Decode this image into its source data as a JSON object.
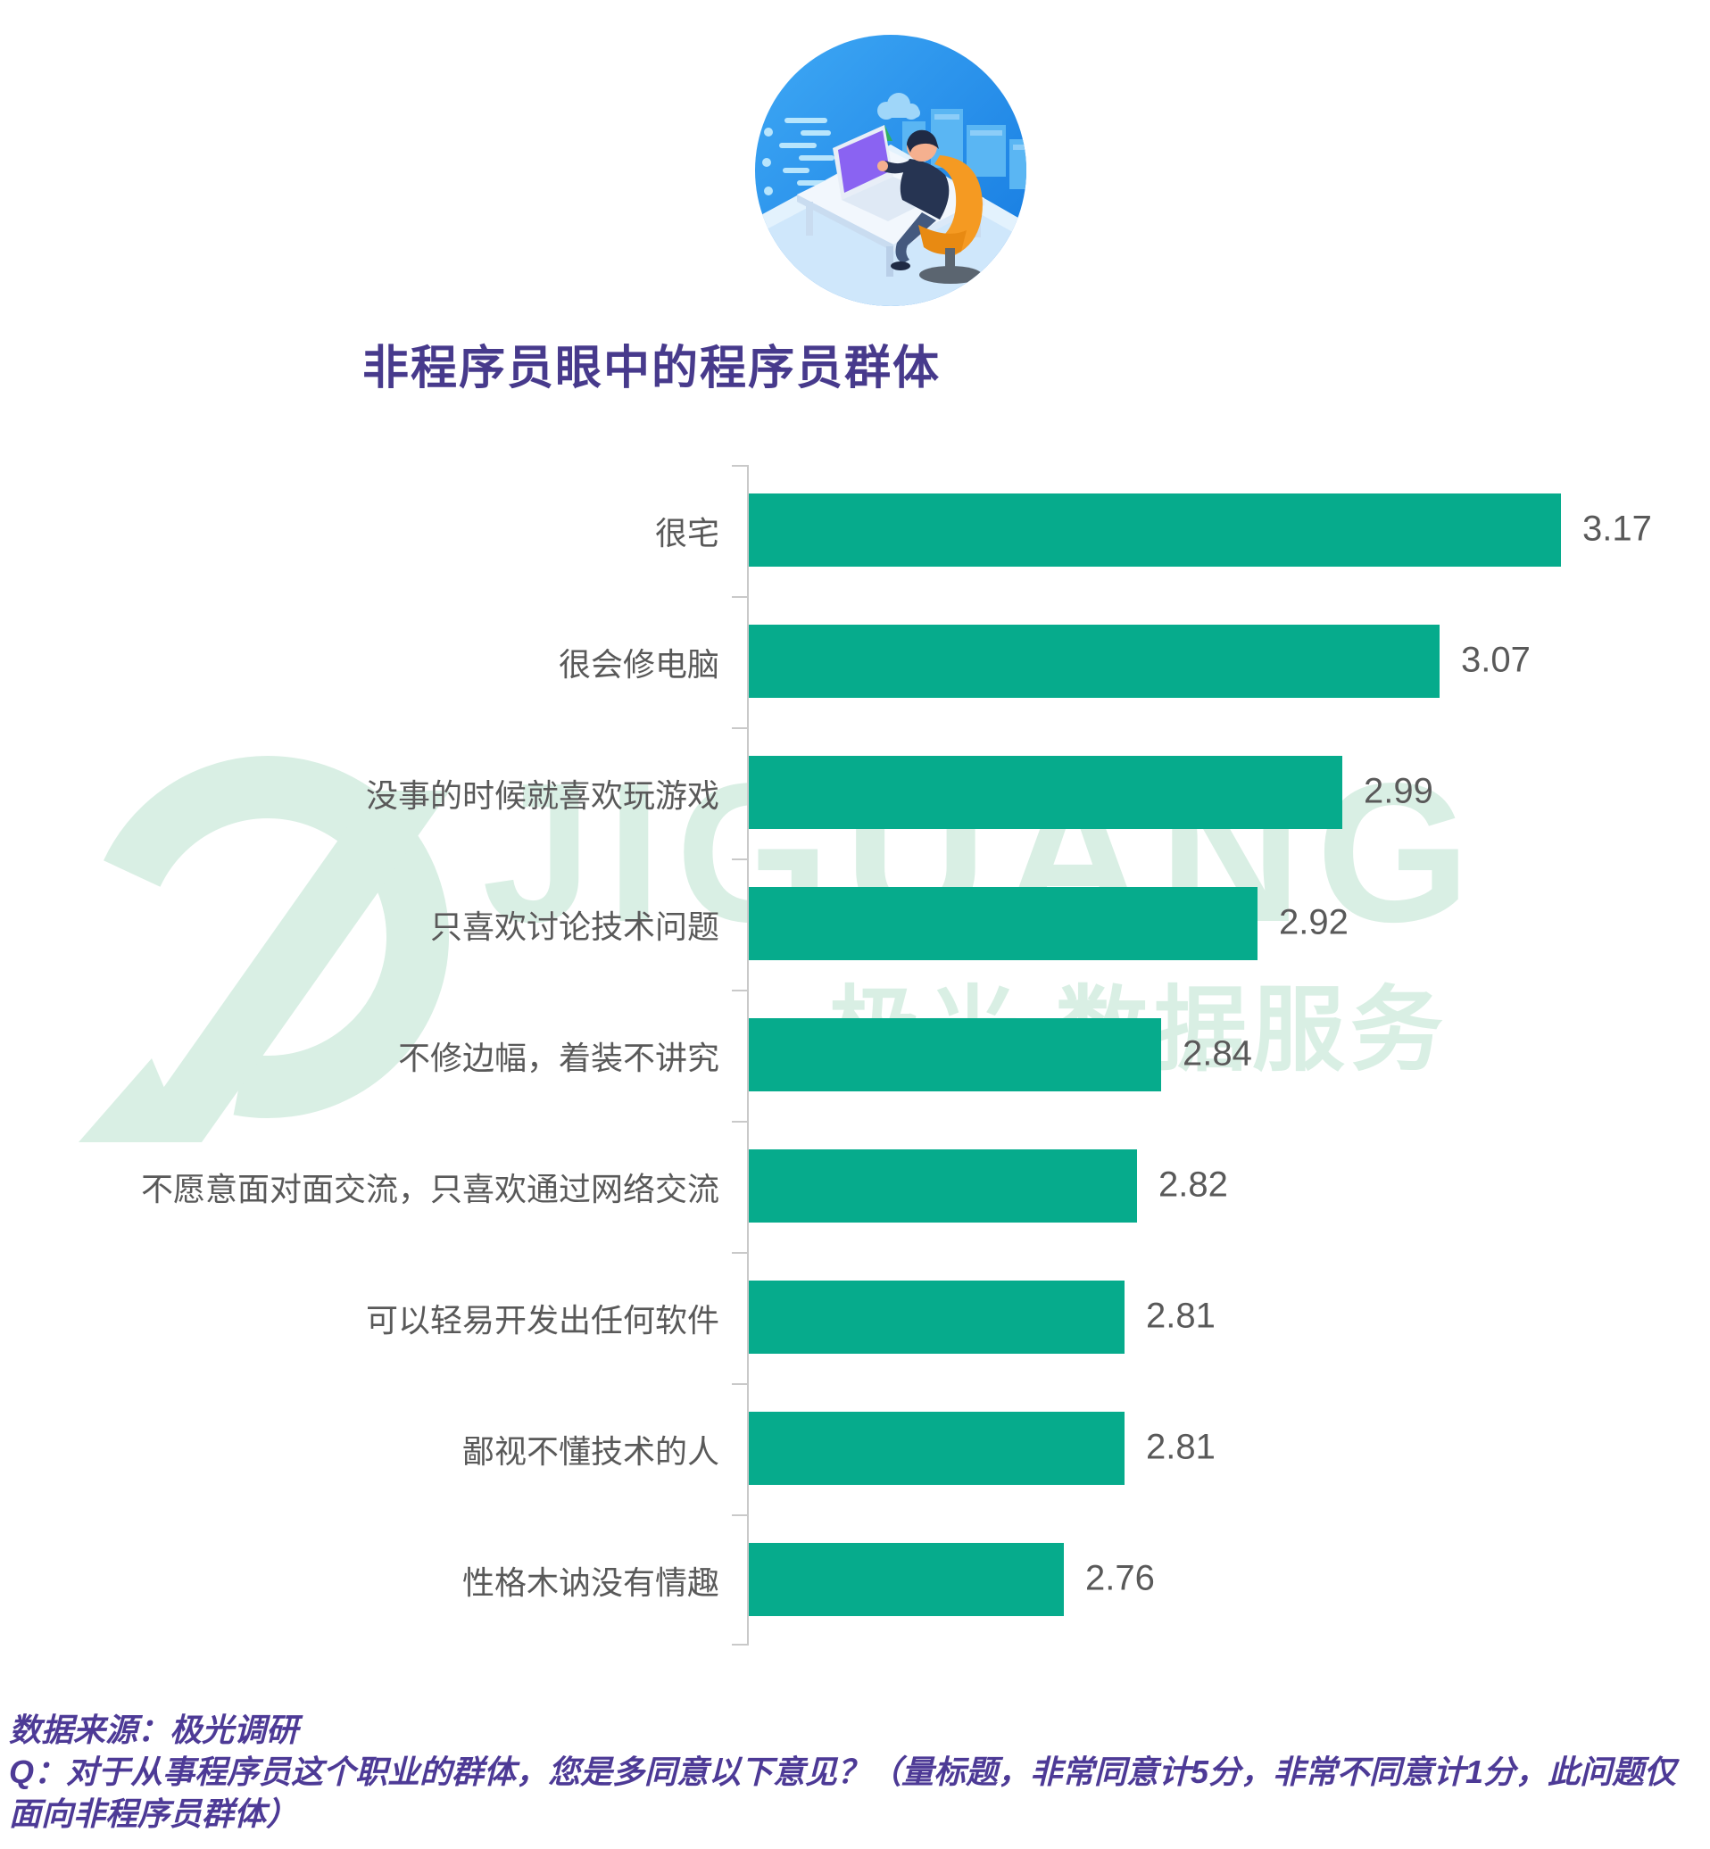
{
  "title": "非程序员眼中的程序员群体",
  "watermark": {
    "brand_latin": "JIGUANG",
    "brand_cn": "极光 数据服务"
  },
  "footer": {
    "source": "数据来源：极光调研",
    "question": "Q：对于从事程序员这个职业的群体，您是多同意以下意见？（量标题，非常同意计5分，非常不同意计1分，此问题仅面向非程序员群体）"
  },
  "colors": {
    "bar_teal": "#06ab8c",
    "title_purple": "#473a8c",
    "footer_purple": "#4d3a96",
    "text_gray": "#595959",
    "axis_gray": "#c9c9c9",
    "watermark_green": "#d9efe4",
    "illustration_blue": "#2196f3",
    "chair_orange": "#f59a22"
  },
  "chart_data": {
    "type": "bar",
    "orientation": "horizontal",
    "title": "非程序员眼中的程序员群体",
    "categories": [
      "很宅",
      "很会修电脑",
      "没事的时候就喜欢玩游戏",
      "只喜欢讨论技术问题",
      "不修边幅，着装不讲究",
      "不愿意面对面交流，只喜欢通过网络交流",
      "可以轻易开发出任何软件",
      "鄙视不懂技术的人",
      "性格木讷没有情趣"
    ],
    "values": [
      3.17,
      3.07,
      2.99,
      2.92,
      2.84,
      2.82,
      2.81,
      2.81,
      2.76
    ],
    "value_labels": [
      "3.17",
      "3.07",
      "2.99",
      "2.92",
      "2.84",
      "2.82",
      "2.81",
      "2.81",
      "2.76"
    ],
    "xlim": [
      2.5,
      3.3
    ],
    "grid": false,
    "legend": false,
    "bar_color": "#06ab8c"
  }
}
